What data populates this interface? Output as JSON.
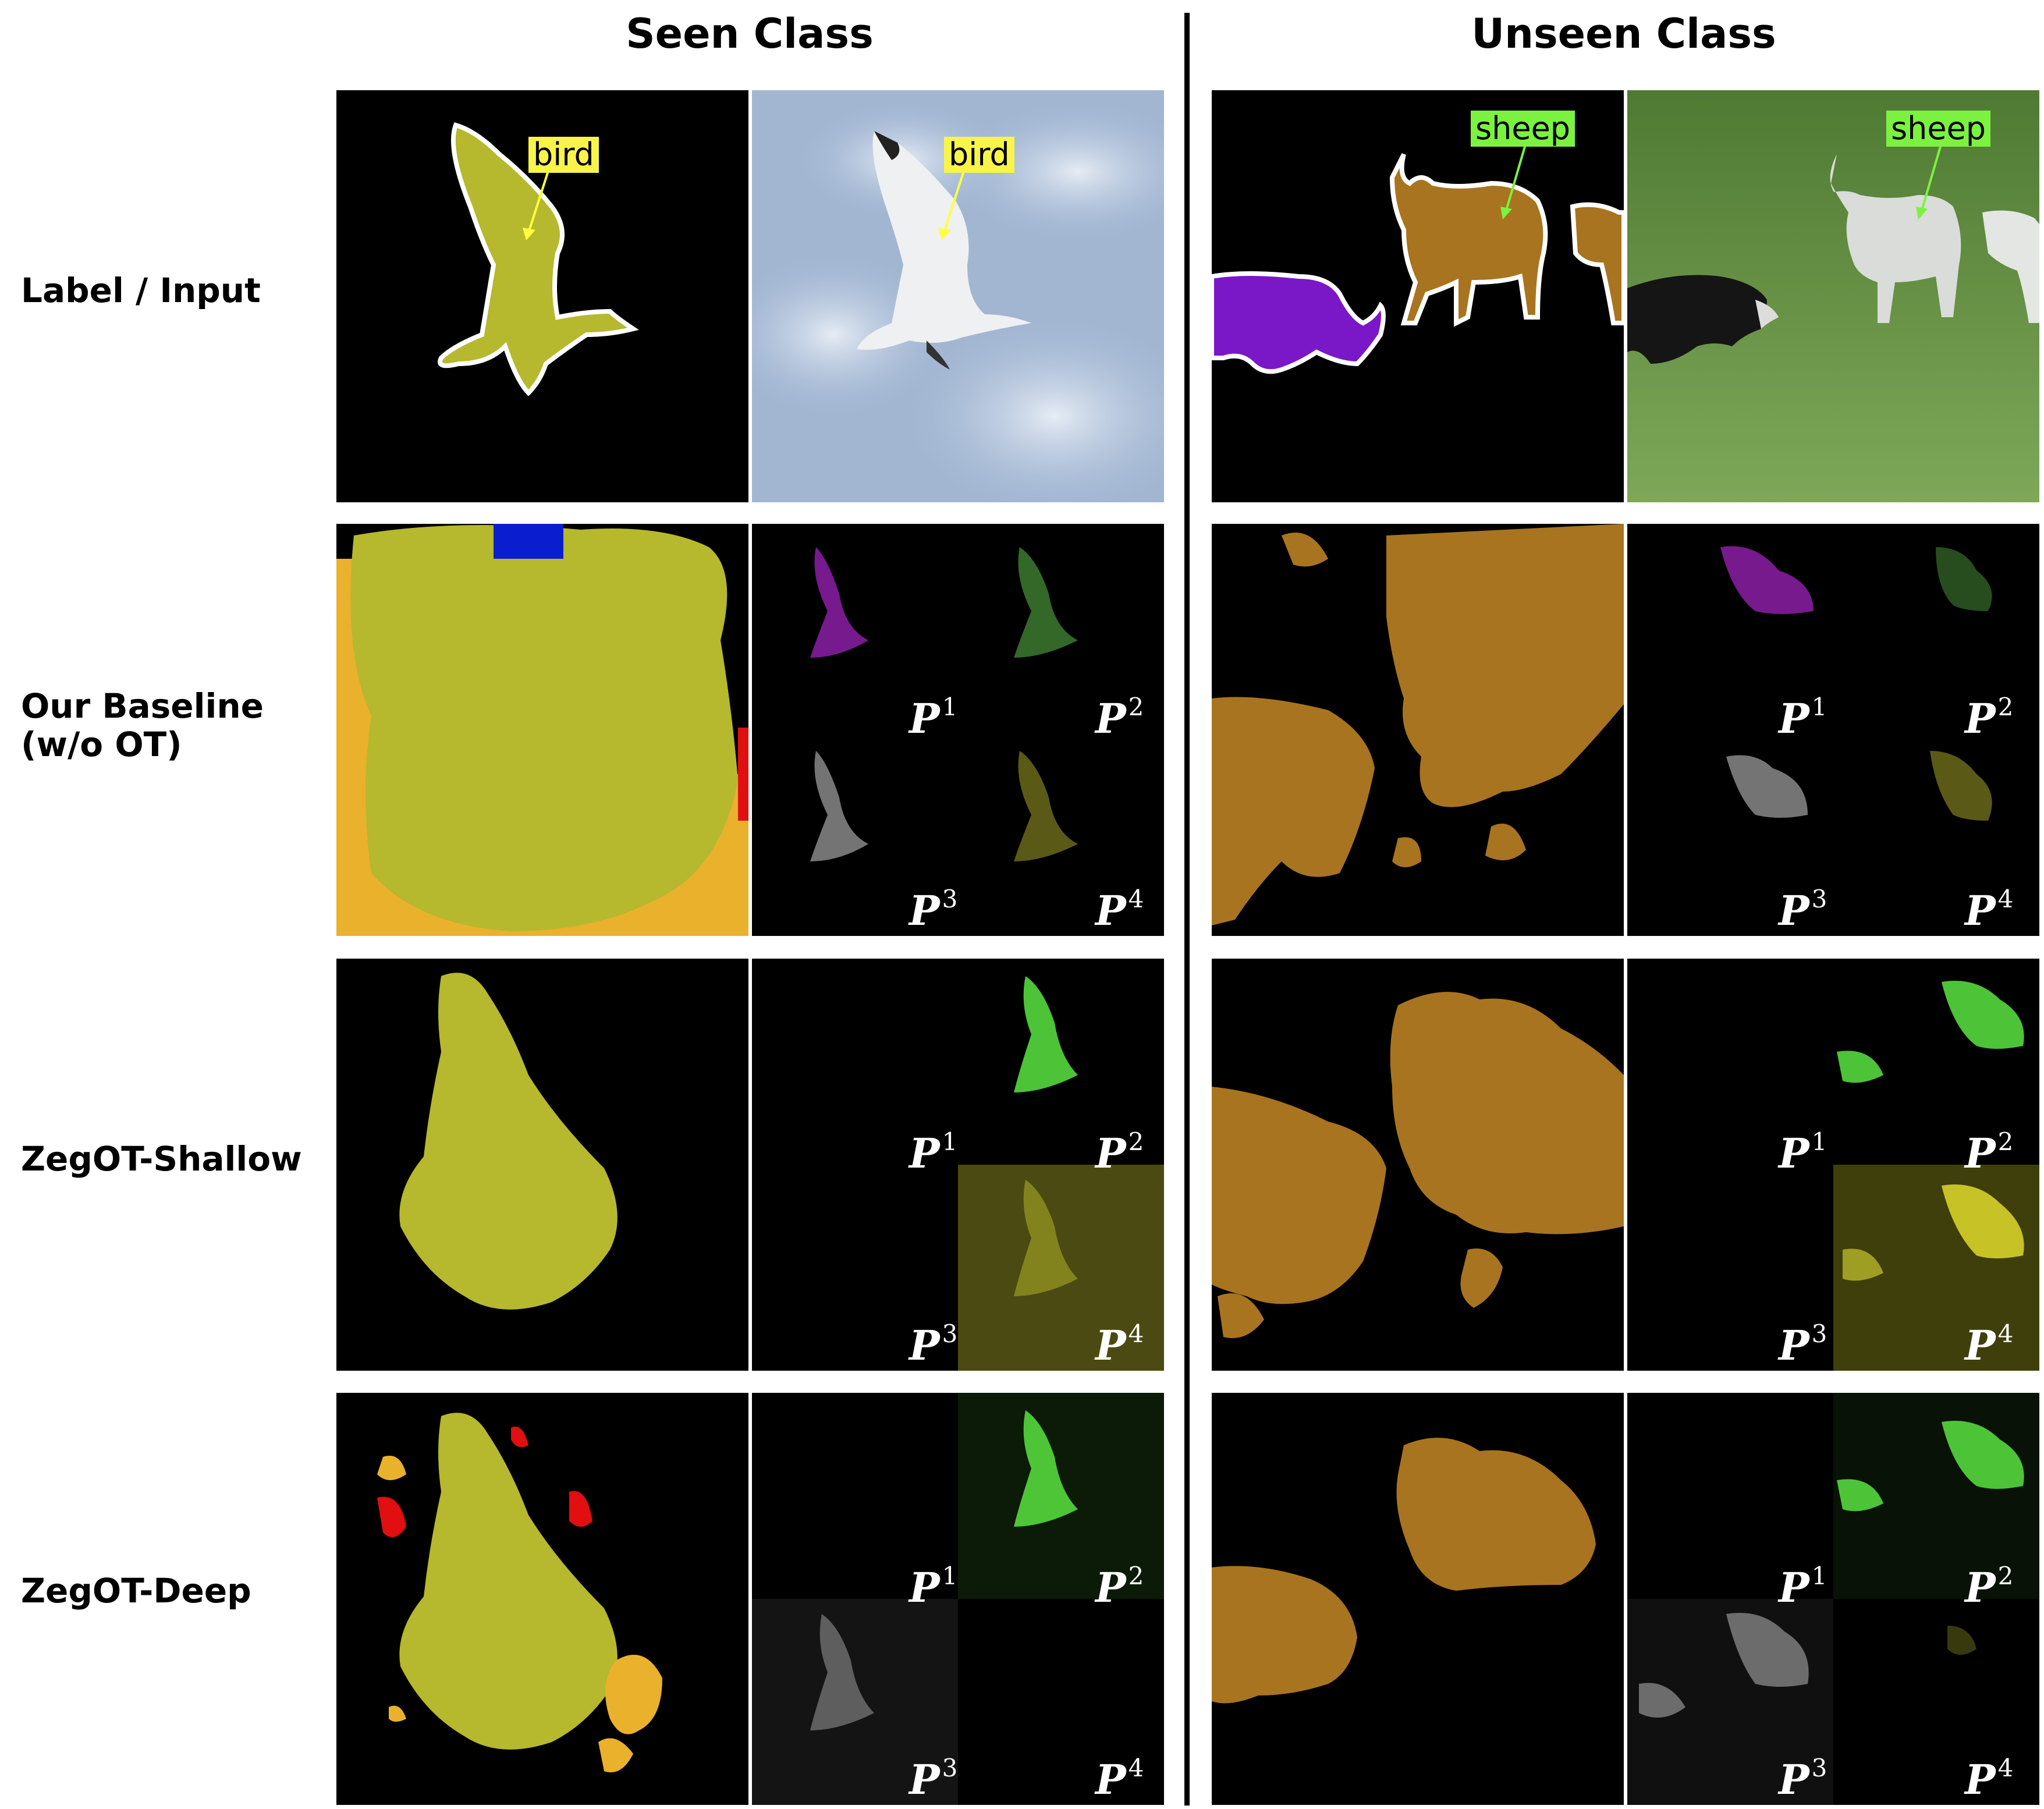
{
  "headers": {
    "seen": "Seen Class",
    "unseen": "Unseen Class"
  },
  "rows": [
    {
      "label": "Label / Input"
    },
    {
      "label": "Our Baseline\n(w/o OT)"
    },
    {
      "label": "ZegOT-Shallow"
    },
    {
      "label": "ZegOT-Deep"
    }
  ],
  "annotations": {
    "seen_label": "bird",
    "unseen_label": "sheep"
  },
  "prompts": [
    {
      "base": "P",
      "sup": "1"
    },
    {
      "base": "P",
      "sup": "2"
    },
    {
      "base": "P",
      "sup": "3"
    },
    {
      "base": "P",
      "sup": "4"
    }
  ],
  "colors": {
    "bird_mask": "#b6b82e",
    "sheep_mask": "#a8741f",
    "dog_mask": "#7a18c8",
    "other_orange": "#eab12c",
    "other_red": "#e10f0f",
    "other_blue": "#0a1ed0",
    "prompt_purple": "#8b1fa6",
    "prompt_green": "#55d83d",
    "prompt_gray": "#aaaaaa",
    "prompt_yellow": "#8a8a20",
    "bird_label_bg": "#f8f44a",
    "sheep_label_bg": "#7cf240"
  }
}
